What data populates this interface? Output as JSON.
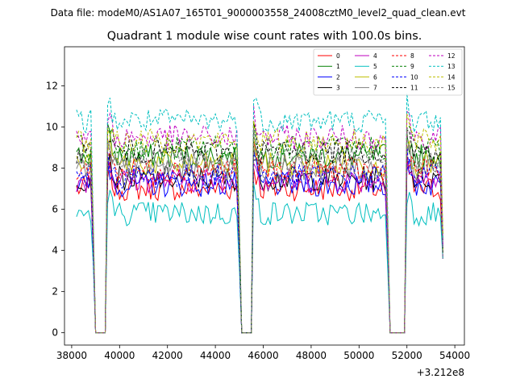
{
  "chart_data": {
    "type": "line",
    "suptitle": "Data file: modeM0/AS1A07_165T01_9000003558_24008cztM0_level2_quad_clean.evt",
    "title": "Quadrant 1 module wise count rates with 100.0s bins.",
    "xlabel": "",
    "ylabel": "",
    "x_offset_label": "+3.212e8",
    "xlim": [
      37700,
      54400
    ],
    "ylim": [
      -0.6,
      13.9
    ],
    "x_ticks": [
      38000,
      40000,
      42000,
      44000,
      46000,
      48000,
      50000,
      52000,
      54000
    ],
    "x_tick_labels": [
      "38000",
      "40000",
      "42000",
      "44000",
      "46000",
      "48000",
      "50000",
      "52000",
      "54000"
    ],
    "y_ticks": [
      0,
      2,
      4,
      6,
      8,
      10,
      12
    ],
    "y_tick_labels": [
      "0",
      "2",
      "4",
      "6",
      "8",
      "10",
      "12"
    ],
    "bin_seconds": 100,
    "segments": [
      [
        38200,
        38900
      ],
      [
        39600,
        45000
      ],
      [
        45700,
        51200
      ],
      [
        52000,
        53500
      ]
    ],
    "gap_bins": [
      [
        39000,
        39400
      ],
      [
        45100,
        45500
      ],
      [
        51300,
        51900
      ]
    ],
    "series": [
      {
        "name": "0",
        "color": "#ff0000",
        "dash": "solid",
        "level": 7.0
      },
      {
        "name": "1",
        "color": "#008000",
        "dash": "solid",
        "level": 8.6
      },
      {
        "name": "2",
        "color": "#0000ff",
        "dash": "solid",
        "level": 7.2
      },
      {
        "name": "3",
        "color": "#000000",
        "dash": "solid",
        "level": 7.5
      },
      {
        "name": "4",
        "color": "#bf00bf",
        "dash": "solid",
        "level": 7.4
      },
      {
        "name": "5",
        "color": "#00bfbf",
        "dash": "solid",
        "level": 5.8
      },
      {
        "name": "6",
        "color": "#bfbf00",
        "dash": "solid",
        "level": 8.2
      },
      {
        "name": "7",
        "color": "#808080",
        "dash": "solid",
        "level": 8.0
      },
      {
        "name": "8",
        "color": "#ff0000",
        "dash": "dashed",
        "level": 7.9
      },
      {
        "name": "9",
        "color": "#008000",
        "dash": "dashed",
        "level": 9.0
      },
      {
        "name": "10",
        "color": "#0000ff",
        "dash": "dashed",
        "level": 7.6
      },
      {
        "name": "11",
        "color": "#000000",
        "dash": "dashed",
        "level": 8.8
      },
      {
        "name": "12",
        "color": "#bf00bf",
        "dash": "dashed",
        "level": 9.5
      },
      {
        "name": "13",
        "color": "#00bfbf",
        "dash": "dashed",
        "level": 10.3
      },
      {
        "name": "14",
        "color": "#bfbf00",
        "dash": "dashed",
        "level": 9.3
      },
      {
        "name": "15",
        "color": "#808080",
        "dash": "dashed",
        "level": 8.4
      }
    ],
    "legend_position": "top-right",
    "legend_columns": 4
  }
}
